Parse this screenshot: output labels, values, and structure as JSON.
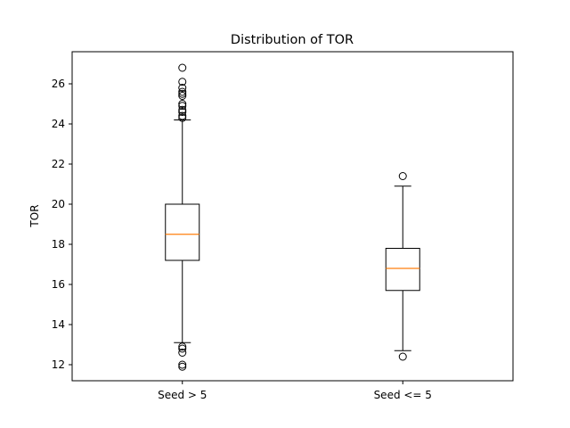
{
  "chart_data": {
    "type": "box",
    "title": "Distribution of TOR",
    "xlabel": "",
    "ylabel": "TOR",
    "ylim": [
      11.2,
      27.6
    ],
    "yticks": [
      12,
      14,
      16,
      18,
      20,
      22,
      24,
      26
    ],
    "grid": false,
    "categories": [
      "Seed > 5",
      "Seed <= 5"
    ],
    "boxes": [
      {
        "category": "Seed > 5",
        "whisker_low": 13.1,
        "q1": 17.2,
        "median": 18.5,
        "q3": 20.0,
        "whisker_high": 24.2,
        "outliers": [
          12.0,
          11.9,
          12.6,
          12.8,
          12.9,
          24.3,
          24.4,
          24.6,
          24.7,
          24.9,
          25.0,
          25.4,
          25.5,
          25.6,
          25.8,
          26.1,
          26.8
        ]
      },
      {
        "category": "Seed <= 5",
        "whisker_low": 12.7,
        "q1": 15.7,
        "median": 16.8,
        "q3": 17.8,
        "whisker_high": 20.9,
        "outliers": [
          12.4,
          21.4
        ]
      }
    ],
    "colors": {
      "box": "#000000",
      "median": "#ff7f0e",
      "outlier": "#000000"
    }
  }
}
